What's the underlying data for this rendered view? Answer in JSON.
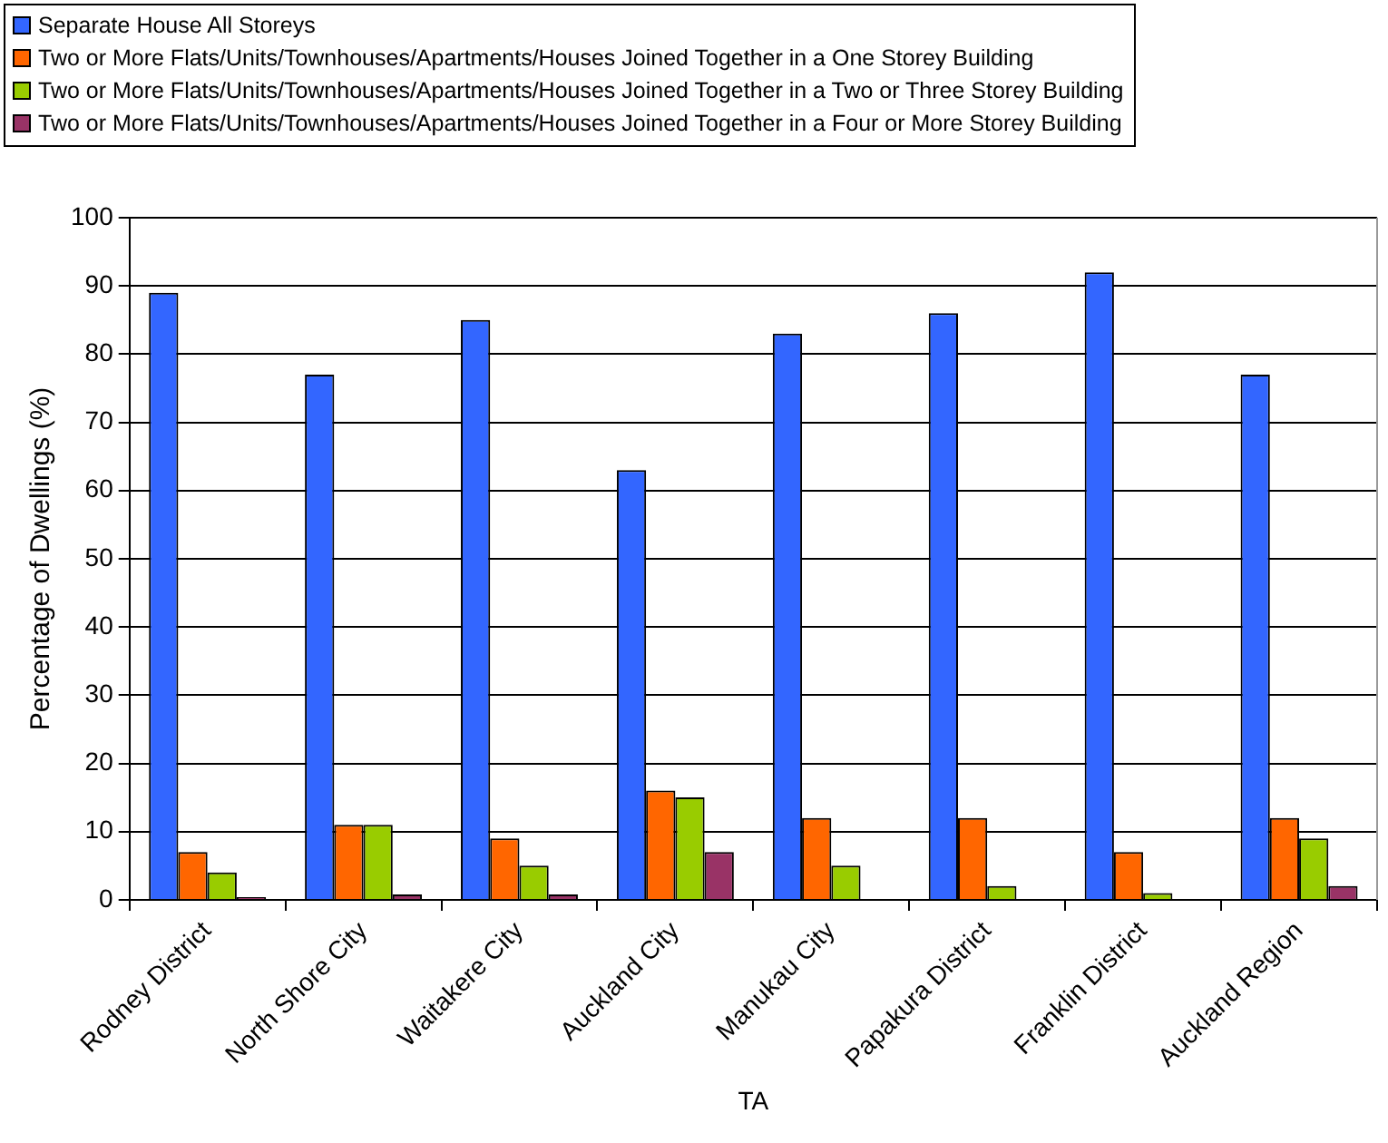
{
  "chart_data": {
    "type": "bar",
    "xlabel": "TA",
    "ylabel": "Percentage of Dwellings (%)",
    "categories": [
      "Rodney District",
      "North Shore City",
      "Waitakere City",
      "Auckland City",
      "Manukau City",
      "Papakura District",
      "Franklin District",
      "Auckland Region"
    ],
    "series": [
      {
        "name": "Separate House All Storeys",
        "color": "#3366ff",
        "values": [
          89,
          77,
          85,
          63,
          83,
          86,
          92,
          77
        ]
      },
      {
        "name": "Two or More Flats/Units/Townhouses/Apartments/Houses Joined Together in a One Storey Building",
        "color": "#ff6600",
        "values": [
          7,
          11,
          9,
          16,
          12,
          12,
          7,
          12
        ]
      },
      {
        "name": "Two or More Flats/Units/Townhouses/Apartments/Houses Joined Together in a Two or Three Storey Building",
        "color": "#99cc00",
        "values": [
          4,
          11,
          5,
          15,
          5,
          2,
          1,
          9
        ]
      },
      {
        "name": "Two or More Flats/Units/Townhouses/Apartments/Houses Joined Together in a Four or More Storey Building",
        "color": "#993366",
        "values": [
          0.4,
          0.8,
          0.8,
          7,
          0,
          0,
          0,
          2
        ]
      }
    ],
    "ylim": [
      0,
      100
    ],
    "yticks": [
      0,
      10,
      20,
      30,
      40,
      50,
      60,
      70,
      80,
      90,
      100
    ],
    "grid": "y",
    "legend": "top left"
  }
}
